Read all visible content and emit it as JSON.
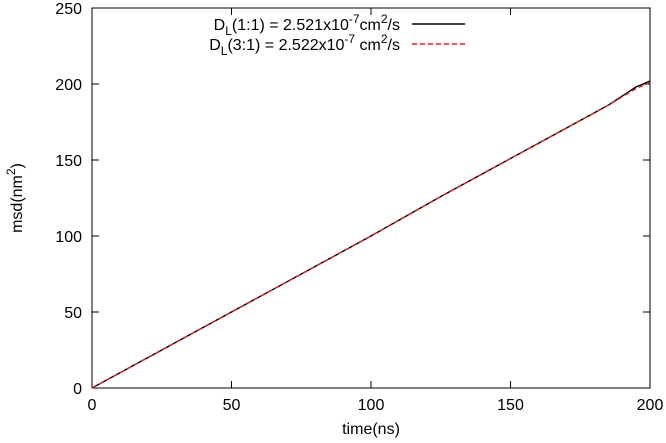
{
  "chart_data": {
    "type": "line",
    "title": "",
    "xlabel": {
      "text": "time(ns)"
    },
    "ylabel": {
      "base": "msd(nm",
      "sup": "2",
      "close": ")"
    },
    "xlim": [
      0,
      200
    ],
    "ylim": [
      0,
      250
    ],
    "xticks": [
      0,
      50,
      100,
      150,
      200
    ],
    "yticks": [
      0,
      50,
      100,
      150,
      200,
      250
    ],
    "grid": false,
    "legend_position": "top-right",
    "series": [
      {
        "legend": {
          "prefix": "D",
          "sub": "L",
          "ratio": "(1:1) = 2.521x10",
          "exp": "-7",
          "unit_pre": "cm",
          "unit_sup": "2",
          "unit_post": "/s"
        },
        "color": "#000000",
        "dash": "solid",
        "x": [
          0,
          25,
          50,
          75,
          100,
          125,
          150,
          170,
          185,
          195,
          200
        ],
        "y": [
          0,
          25,
          50,
          75,
          100,
          126,
          151,
          171,
          186,
          198,
          202
        ]
      },
      {
        "legend": {
          "prefix": "D",
          "sub": "L",
          "ratio": "(3:1) = 2.522x10",
          "exp": "-7",
          "unit_pre": " cm",
          "unit_sup": "2",
          "unit_post": "/s"
        },
        "color": "#d62728",
        "dash": "dashed",
        "x": [
          0,
          25,
          50,
          75,
          100,
          125,
          150,
          170,
          185,
          195,
          200
        ],
        "y": [
          0,
          25,
          50,
          75,
          100,
          126,
          151,
          171,
          186,
          197,
          201
        ]
      }
    ]
  }
}
